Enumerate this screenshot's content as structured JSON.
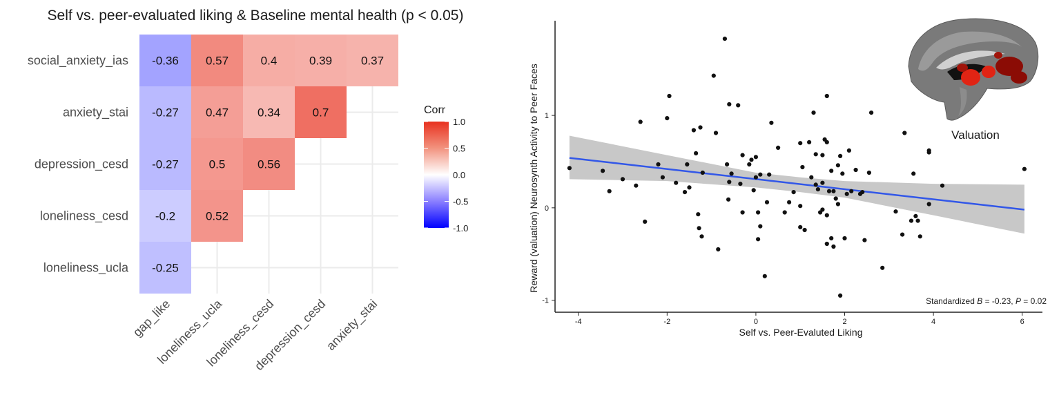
{
  "chart_data": [
    {
      "type": "heatmap",
      "title": "Self vs. peer-evaluated liking & Baseline mental health (p < 0.05)",
      "row_labels": [
        "social_anxiety_ias",
        "anxiety_stai",
        "depression_cesd",
        "loneliness_cesd",
        "loneliness_ucla"
      ],
      "col_labels": [
        "gap_like",
        "loneliness_ucla",
        "loneliness_cesd",
        "depression_cesd",
        "anxiety_stai"
      ],
      "cells": [
        {
          "row": 0,
          "col": 0,
          "value": -0.36,
          "label": "-0.36"
        },
        {
          "row": 0,
          "col": 1,
          "value": 0.57,
          "label": "0.57"
        },
        {
          "row": 0,
          "col": 2,
          "value": 0.4,
          "label": "0.4"
        },
        {
          "row": 0,
          "col": 3,
          "value": 0.39,
          "label": "0.39"
        },
        {
          "row": 0,
          "col": 4,
          "value": 0.37,
          "label": "0.37"
        },
        {
          "row": 1,
          "col": 0,
          "value": -0.27,
          "label": "-0.27"
        },
        {
          "row": 1,
          "col": 1,
          "value": 0.47,
          "label": "0.47"
        },
        {
          "row": 1,
          "col": 2,
          "value": 0.34,
          "label": "0.34"
        },
        {
          "row": 1,
          "col": 3,
          "value": 0.7,
          "label": "0.7"
        },
        {
          "row": 2,
          "col": 0,
          "value": -0.27,
          "label": "-0.27"
        },
        {
          "row": 2,
          "col": 1,
          "value": 0.5,
          "label": "0.5"
        },
        {
          "row": 2,
          "col": 2,
          "value": 0.56,
          "label": "0.56"
        },
        {
          "row": 3,
          "col": 0,
          "value": -0.2,
          "label": "-0.2"
        },
        {
          "row": 3,
          "col": 1,
          "value": 0.52,
          "label": "0.52"
        },
        {
          "row": 4,
          "col": 0,
          "value": -0.25,
          "label": "-0.25"
        }
      ],
      "legend": {
        "title": "Corr",
        "ticks": [
          "1.0",
          "0.5",
          "0.0",
          "-0.5",
          "-1.0"
        ],
        "tick_values": [
          1.0,
          0.5,
          0.0,
          -0.5,
          -1.0
        ],
        "range": [
          -1,
          1
        ],
        "colors": {
          "low": "#0000ff",
          "mid": "#ffffff",
          "high": "#e8311f"
        }
      },
      "grid": true
    },
    {
      "type": "scatter",
      "xlabel": "Self vs. Peer-Evaluted Liking",
      "ylabel": "Reward (valuation) Neurosynth Activity to Peer Faces",
      "xlim": [
        -4.4,
        6.3
      ],
      "ylim": [
        -1.1,
        1.95
      ],
      "xticks": [
        -4,
        -2,
        0,
        2,
        4,
        6
      ],
      "xtick_labels": [
        "-4",
        "-2",
        "0",
        "2",
        "4",
        "6"
      ],
      "yticks": [
        -1,
        0,
        1
      ],
      "ytick_labels": [
        "-1",
        "0",
        "1"
      ],
      "points": [
        [
          -4.2,
          0.43
        ],
        [
          -3.45,
          0.4
        ],
        [
          -3.3,
          0.18
        ],
        [
          -3.0,
          0.31
        ],
        [
          -2.7,
          0.24
        ],
        [
          -2.6,
          0.93
        ],
        [
          -2.5,
          -0.15
        ],
        [
          -2.2,
          0.47
        ],
        [
          -2.1,
          0.33
        ],
        [
          -2.0,
          0.97
        ],
        [
          -1.95,
          1.21
        ],
        [
          -1.8,
          0.27
        ],
        [
          -1.6,
          0.17
        ],
        [
          -1.55,
          0.47
        ],
        [
          -1.5,
          0.22
        ],
        [
          -1.4,
          0.84
        ],
        [
          -1.35,
          0.59
        ],
        [
          -1.3,
          -0.07
        ],
        [
          -1.28,
          -0.22
        ],
        [
          -1.25,
          0.87
        ],
        [
          -1.2,
          0.38
        ],
        [
          -1.22,
          -0.31
        ],
        [
          -0.95,
          1.43
        ],
        [
          -0.9,
          0.81
        ],
        [
          -0.85,
          -0.45
        ],
        [
          -0.7,
          1.83
        ],
        [
          -0.65,
          0.47
        ],
        [
          -0.6,
          0.28
        ],
        [
          -0.62,
          0.09
        ],
        [
          -0.6,
          1.12
        ],
        [
          -0.55,
          0.37
        ],
        [
          -0.4,
          1.11
        ],
        [
          -0.35,
          0.26
        ],
        [
          -0.3,
          -0.05
        ],
        [
          -0.3,
          0.57
        ],
        [
          -0.15,
          0.47
        ],
        [
          -0.1,
          0.52
        ],
        [
          -0.05,
          0.19
        ],
        [
          0.0,
          0.55
        ],
        [
          0.0,
          0.33
        ],
        [
          0.05,
          -0.34
        ],
        [
          0.05,
          -0.05
        ],
        [
          0.1,
          -0.2
        ],
        [
          0.1,
          0.36
        ],
        [
          0.2,
          -0.74
        ],
        [
          0.25,
          0.06
        ],
        [
          0.3,
          0.36
        ],
        [
          0.35,
          0.92
        ],
        [
          0.5,
          0.65
        ],
        [
          0.65,
          -0.05
        ],
        [
          0.75,
          0.06
        ],
        [
          0.85,
          0.17
        ],
        [
          1.0,
          0.7
        ],
        [
          1.0,
          0.02
        ],
        [
          1.0,
          -0.21
        ],
        [
          1.05,
          0.44
        ],
        [
          1.1,
          -0.24
        ],
        [
          1.2,
          0.71
        ],
        [
          1.25,
          0.33
        ],
        [
          1.3,
          1.03
        ],
        [
          1.35,
          0.58
        ],
        [
          1.35,
          0.25
        ],
        [
          1.4,
          0.2
        ],
        [
          1.45,
          -0.05
        ],
        [
          1.5,
          0.57
        ],
        [
          1.5,
          0.27
        ],
        [
          1.5,
          -0.02
        ],
        [
          1.55,
          0.74
        ],
        [
          1.6,
          1.21
        ],
        [
          1.6,
          0.71
        ],
        [
          1.6,
          -0.08
        ],
        [
          1.6,
          -0.39
        ],
        [
          1.65,
          0.18
        ],
        [
          1.7,
          0.4
        ],
        [
          1.7,
          -0.33
        ],
        [
          1.75,
          0.18
        ],
        [
          1.75,
          -0.42
        ],
        [
          1.8,
          0.1
        ],
        [
          1.85,
          0.46
        ],
        [
          1.85,
          0.04
        ],
        [
          1.9,
          0.56
        ],
        [
          1.9,
          -0.95
        ],
        [
          1.95,
          0.37
        ],
        [
          2.0,
          -0.33
        ],
        [
          2.05,
          0.15
        ],
        [
          2.1,
          0.62
        ],
        [
          2.15,
          0.18
        ],
        [
          2.25,
          0.41
        ],
        [
          2.35,
          0.15
        ],
        [
          2.4,
          0.17
        ],
        [
          2.45,
          -0.35
        ],
        [
          2.55,
          0.38
        ],
        [
          2.6,
          1.03
        ],
        [
          2.85,
          -0.65
        ],
        [
          3.15,
          -0.04
        ],
        [
          3.3,
          -0.29
        ],
        [
          3.35,
          0.81
        ],
        [
          3.5,
          -0.14
        ],
        [
          3.55,
          0.37
        ],
        [
          3.6,
          -0.09
        ],
        [
          3.65,
          -0.14
        ],
        [
          3.7,
          -0.31
        ],
        [
          3.9,
          0.04
        ],
        [
          3.9,
          0.62
        ],
        [
          3.9,
          0.6
        ],
        [
          4.2,
          0.24
        ],
        [
          6.05,
          0.42
        ]
      ],
      "fit": {
        "x": [
          -4.2,
          6.05
        ],
        "y": [
          0.54,
          -0.02
        ]
      },
      "confidence_band": {
        "x": [
          -4.2,
          -2,
          0,
          1,
          2,
          4,
          6.05
        ],
        "upper": [
          0.78,
          0.57,
          0.38,
          0.33,
          0.29,
          0.26,
          0.25
        ],
        "lower": [
          0.31,
          0.29,
          0.22,
          0.17,
          0.11,
          -0.08,
          -0.28
        ]
      },
      "annotation": "Standardized B = -0.23, P = 0.02",
      "inset_label": "Valuation",
      "colors": {
        "point": "#111111",
        "fit": "#3257e8",
        "band": "#c2c2c2"
      },
      "grid": false
    }
  ]
}
